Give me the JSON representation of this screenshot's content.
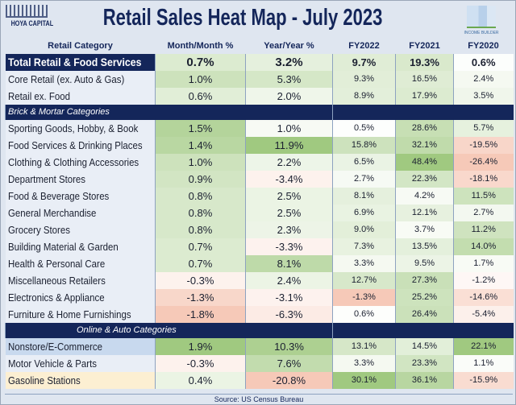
{
  "logo_left": "HOYA CAPITAL REAL ESTATE",
  "logo_right": "INCOME BUILDER",
  "chart_data": {
    "type": "table",
    "title": "Retail Sales Heat Map -  July 2023",
    "columns": [
      "Retail Category",
      "Month/Month %",
      "Year/Year %",
      "FY2022",
      "FY2021",
      "FY2020"
    ],
    "rows": [
      {
        "type": "total",
        "name": "Total Retail & Food Services",
        "values": [
          "0.7%",
          "3.2%",
          "9.7%",
          "19.3%",
          "0.6%"
        ]
      },
      {
        "name": "Core Retail (ex. Auto & Gas)",
        "values": [
          "1.0%",
          "5.3%",
          "9.3%",
          "16.5%",
          "2.4%"
        ]
      },
      {
        "name": "Retail ex. Food",
        "values": [
          "0.6%",
          "2.0%",
          "8.9%",
          "17.9%",
          "3.5%"
        ]
      },
      {
        "type": "section",
        "name": "Brick & Mortar Categories"
      },
      {
        "name": "Sporting Goods, Hobby, & Book",
        "values": [
          "1.5%",
          "1.0%",
          "0.5%",
          "28.6%",
          "5.7%"
        ]
      },
      {
        "name": "Food Services & Drinking Places",
        "values": [
          "1.4%",
          "11.9%",
          "15.8%",
          "32.1%",
          "-19.5%"
        ]
      },
      {
        "name": "Clothing & Clothing Accessories",
        "values": [
          "1.0%",
          "2.2%",
          "6.5%",
          "48.4%",
          "-26.4%"
        ]
      },
      {
        "name": "Department Stores",
        "values": [
          "0.9%",
          "-3.4%",
          "2.7%",
          "22.3%",
          "-18.1%"
        ]
      },
      {
        "name": "Food & Beverage Stores",
        "values": [
          "0.8%",
          "2.5%",
          "8.1%",
          "4.2%",
          "11.5%"
        ]
      },
      {
        "name": "General Merchandise",
        "values": [
          "0.8%",
          "2.5%",
          "6.9%",
          "12.1%",
          "2.7%"
        ]
      },
      {
        "name": "Grocery Stores",
        "values": [
          "0.8%",
          "2.3%",
          "9.0%",
          "3.7%",
          "11.2%"
        ]
      },
      {
        "name": "Building Material & Garden",
        "values": [
          "0.7%",
          "-3.3%",
          "7.3%",
          "13.5%",
          "14.0%"
        ]
      },
      {
        "name": "Health & Personal Care",
        "values": [
          "0.7%",
          "8.1%",
          "3.3%",
          "9.5%",
          "1.7%"
        ]
      },
      {
        "name": "Miscellaneous Retailers",
        "values": [
          "-0.3%",
          "2.4%",
          "12.7%",
          "27.3%",
          "-1.2%"
        ]
      },
      {
        "name": "Electronics & Appliance",
        "values": [
          "-1.3%",
          "-3.1%",
          "-1.3%",
          "25.2%",
          "-14.6%"
        ]
      },
      {
        "name": "Furniture & Home Furnishings",
        "values": [
          "-1.8%",
          "-6.3%",
          "0.6%",
          "26.4%",
          "-5.4%"
        ]
      },
      {
        "type": "section",
        "name": "Online & Auto Categories"
      },
      {
        "name": "Nonstore/E-Commerce",
        "values": [
          "1.9%",
          "10.3%",
          "13.1%",
          "14.5%",
          "22.1%"
        ],
        "label_color": "#c8d9ee"
      },
      {
        "name": "Motor Vehicle & Parts",
        "values": [
          "-0.3%",
          "7.6%",
          "3.3%",
          "23.3%",
          "1.1%"
        ]
      },
      {
        "name": "Gasoline Stations",
        "values": [
          "0.4%",
          "-20.8%",
          "30.1%",
          "36.1%",
          "-15.9%"
        ],
        "label_color": "#fcefd2"
      }
    ],
    "colors": {
      "high": "#8fbf6a",
      "mid": "#ffffff",
      "low": "#f6c9b8",
      "header": "#14265a"
    }
  },
  "source": "Source: US Census Bureau"
}
